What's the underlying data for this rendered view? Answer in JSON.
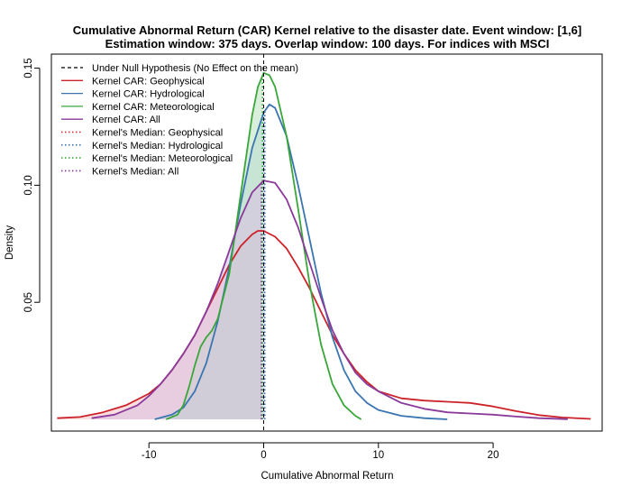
{
  "chart_data": {
    "type": "line",
    "title_line1": "Cumulative Abnormal Return (CAR) Kernel relative to the disaster date. Event window: [1,6]",
    "title_line2": "Estimation window: 375 days. Overlap window: 100 days. For indices with MSCI",
    "xlabel": "Cumulative Abnormal Return",
    "ylabel": "Density",
    "xlim": [
      -18.5,
      29.5
    ],
    "ylim": [
      -0.005,
      0.156
    ],
    "xticks": [
      -10,
      0,
      10,
      20
    ],
    "yticks": [
      0.05,
      0.1,
      0.15
    ],
    "ytick_labels": [
      "0.05",
      "0.10",
      "0.15"
    ],
    "grid": false,
    "legend_position": "top-left",
    "null_hypothesis": {
      "x": 0,
      "label": "Under Null Hypothesis (No Effect on the mean)",
      "color": "#000000"
    },
    "series": [
      {
        "name": "Kernel CAR: Geophysical",
        "median_label": "Kernel's Median: Geophysical",
        "color": "#cc2229",
        "fill": "#f7c2c7",
        "median": -0.1,
        "x": [
          -18,
          -16,
          -14,
          -12,
          -10,
          -9,
          -8,
          -7,
          -6,
          -5,
          -4,
          -3,
          -2,
          -1,
          -0.5,
          0,
          1,
          2,
          3,
          4,
          5,
          6,
          7,
          8,
          9,
          10,
          12,
          14,
          16,
          18,
          20,
          22,
          24,
          26,
          28.5
        ],
        "y": [
          0.0005,
          0.001,
          0.003,
          0.006,
          0.011,
          0.015,
          0.021,
          0.028,
          0.036,
          0.046,
          0.056,
          0.066,
          0.074,
          0.079,
          0.0805,
          0.0805,
          0.078,
          0.073,
          0.065,
          0.056,
          0.046,
          0.036,
          0.028,
          0.021,
          0.016,
          0.012,
          0.009,
          0.008,
          0.0075,
          0.007,
          0.0055,
          0.0035,
          0.0018,
          0.0008,
          0.0002
        ]
      },
      {
        "name": "Kernel CAR: Hydrological",
        "median_label": "Kernel's Median: Hydrological",
        "color": "#3a75b0",
        "fill": "#b7d1e8",
        "median": 0.1,
        "x": [
          -9.5,
          -8,
          -7,
          -6,
          -5,
          -4,
          -3,
          -2,
          -1,
          0,
          0.5,
          1,
          2,
          3,
          4,
          5,
          6,
          7,
          8,
          9,
          10,
          12,
          14,
          16
        ],
        "y": [
          0.0,
          0.002,
          0.005,
          0.012,
          0.024,
          0.042,
          0.065,
          0.092,
          0.116,
          0.131,
          0.1345,
          0.133,
          0.121,
          0.1,
          0.077,
          0.054,
          0.035,
          0.021,
          0.012,
          0.007,
          0.004,
          0.0015,
          0.0005,
          0.0
        ]
      },
      {
        "name": "Kernel CAR: Meteorological",
        "median_label": "Kernel's Median: Meteorological",
        "color": "#3aa63a",
        "fill": "#b9e1bd",
        "median": -0.1,
        "x": [
          -8.5,
          -7.5,
          -7,
          -6.5,
          -6,
          -5.5,
          -5,
          -4.5,
          -4,
          -3,
          -2,
          -1,
          -0.5,
          0,
          0.5,
          1,
          2,
          3,
          4,
          5,
          6,
          7,
          8,
          8.5
        ],
        "y": [
          0.0,
          0.002,
          0.006,
          0.014,
          0.023,
          0.031,
          0.035,
          0.038,
          0.043,
          0.062,
          0.096,
          0.13,
          0.142,
          0.148,
          0.147,
          0.142,
          0.121,
          0.09,
          0.058,
          0.032,
          0.015,
          0.006,
          0.0015,
          0.0
        ]
      },
      {
        "name": "Kernel CAR: All",
        "median_label": "Kernel's Median: All",
        "color": "#8a3a9a",
        "fill": "#d9bfe1",
        "median": -0.2,
        "x": [
          -15,
          -13,
          -11,
          -10,
          -9,
          -8,
          -7,
          -6,
          -5,
          -4,
          -3,
          -2,
          -1,
          0,
          1,
          2,
          3,
          4,
          5,
          6,
          7,
          8,
          9,
          10,
          12,
          14,
          16,
          18,
          20,
          22,
          24,
          26.5
        ],
        "y": [
          0.0005,
          0.002,
          0.006,
          0.01,
          0.015,
          0.021,
          0.028,
          0.036,
          0.046,
          0.058,
          0.072,
          0.086,
          0.097,
          0.102,
          0.101,
          0.094,
          0.082,
          0.067,
          0.052,
          0.038,
          0.028,
          0.02,
          0.015,
          0.012,
          0.007,
          0.0045,
          0.003,
          0.0025,
          0.002,
          0.0012,
          0.0005,
          0.0001
        ]
      }
    ]
  }
}
